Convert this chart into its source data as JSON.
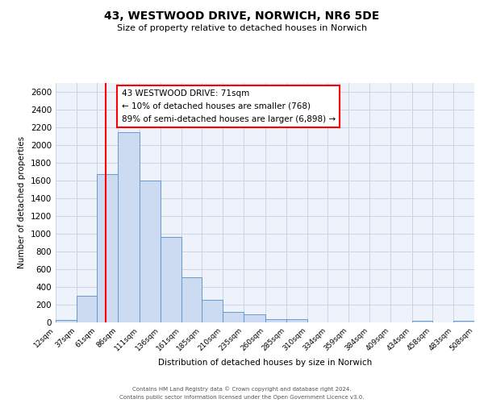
{
  "title": "43, WESTWOOD DRIVE, NORWICH, NR6 5DE",
  "subtitle": "Size of property relative to detached houses in Norwich",
  "xlabel": "Distribution of detached houses by size in Norwich",
  "ylabel": "Number of detached properties",
  "bar_color": "#ccdaf2",
  "bar_edge_color": "#6699cc",
  "background_color": "#eef2fa",
  "grid_color": "#ccd4e8",
  "red_line_x": 71,
  "annotation": {
    "line1": "43 WESTWOOD DRIVE: 71sqm",
    "line2": "← 10% of detached houses are smaller (768)",
    "line3": "89% of semi-detached houses are larger (6,898) →"
  },
  "bin_edges": [
    12,
    37,
    61,
    86,
    111,
    136,
    161,
    185,
    210,
    235,
    260,
    285,
    310,
    334,
    359,
    384,
    409,
    434,
    458,
    483,
    508
  ],
  "bar_heights": [
    25,
    300,
    1670,
    2140,
    1600,
    965,
    505,
    255,
    120,
    95,
    35,
    35,
    0,
    0,
    0,
    0,
    0,
    20,
    0,
    15
  ],
  "ylim": [
    0,
    2700
  ],
  "yticks": [
    0,
    200,
    400,
    600,
    800,
    1000,
    1200,
    1400,
    1600,
    1800,
    2000,
    2200,
    2400,
    2600
  ],
  "footer1": "Contains HM Land Registry data © Crown copyright and database right 2024.",
  "footer2": "Contains public sector information licensed under the Open Government Licence v3.0."
}
